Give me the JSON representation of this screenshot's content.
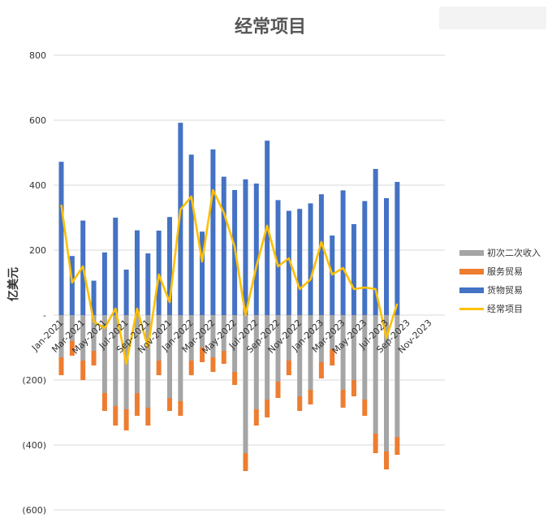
{
  "chart_data": {
    "type": "bar",
    "stacked": true,
    "title": "经常项目",
    "ylabel": "亿美元",
    "xlabel": "",
    "ylim": [
      -600,
      800
    ],
    "yticks": [
      {
        "value": 800,
        "label": "800"
      },
      {
        "value": 600,
        "label": "600"
      },
      {
        "value": 400,
        "label": "400"
      },
      {
        "value": 200,
        "label": "200"
      },
      {
        "value": 0,
        "label": "-"
      },
      {
        "value": -200,
        "label": "(200)"
      },
      {
        "value": -400,
        "label": "(400)"
      },
      {
        "value": -600,
        "label": "(600)"
      }
    ],
    "grid": true,
    "legend_position": "right",
    "categories": [
      "Jan-2021",
      "Feb-2021",
      "Mar-2021",
      "Apr-2021",
      "May-2021",
      "Jun-2021",
      "Jul-2021",
      "Aug-2021",
      "Sep-2021",
      "Oct-2021",
      "Nov-2021",
      "Dec-2021",
      "Jan-2022",
      "Feb-2022",
      "Mar-2022",
      "Apr-2022",
      "May-2022",
      "Jun-2022",
      "Jul-2022",
      "Aug-2022",
      "Sep-2022",
      "Oct-2022",
      "Nov-2022",
      "Dec-2022",
      "Jan-2023",
      "Feb-2023",
      "Mar-2023",
      "Apr-2023",
      "May-2023",
      "Jun-2023",
      "Jul-2023",
      "Aug-2023",
      "Sep-2023",
      "Oct-2023",
      "Nov-2023"
    ],
    "x_tick_labels": [
      "Jan-2021",
      "Mar-2021",
      "May-2021",
      "Jul-2021",
      "Sep-2021",
      "Nov-2021",
      "Jan-2022",
      "Mar-2022",
      "May-2022",
      "Jul-2022",
      "Sep-2022",
      "Nov-2022",
      "Jan-2023",
      "Mar-2023",
      "May-2023",
      "Jul-2023",
      "Sep-2023",
      "Nov-2023"
    ],
    "series": [
      {
        "name": "初次二次收入",
        "type": "bar",
        "color": "#a5a5a5",
        "values": [
          -130,
          -80,
          -140,
          -110,
          -240,
          -280,
          -290,
          -240,
          -285,
          -140,
          -255,
          -265,
          -140,
          -100,
          -130,
          -110,
          -175,
          -425,
          -290,
          -260,
          -205,
          -140,
          -250,
          -230,
          -145,
          -105,
          -230,
          -200,
          -260,
          -365,
          -420,
          -375,
          null,
          null,
          null
        ]
      },
      {
        "name": "服务贸易",
        "type": "bar",
        "color": "#ed7d31",
        "values": [
          -55,
          -45,
          -60,
          -45,
          -55,
          -60,
          -65,
          -70,
          -55,
          -45,
          -40,
          -45,
          -45,
          -45,
          -45,
          -40,
          -40,
          -55,
          -50,
          -55,
          -50,
          -45,
          -45,
          -45,
          -50,
          -50,
          -55,
          -50,
          -50,
          -60,
          -55,
          -55,
          null,
          null,
          null
        ]
      },
      {
        "name": "货物贸易",
        "type": "bar",
        "color": "#4472c4",
        "values": [
          472,
          182,
          291,
          106,
          193,
          300,
          140,
          261,
          190,
          260,
          302,
          592,
          494,
          257,
          510,
          426,
          385,
          418,
          405,
          537,
          354,
          321,
          327,
          344,
          372,
          245,
          384,
          280,
          351,
          450,
          360,
          410,
          null,
          null,
          null
        ]
      },
      {
        "name": "经常项目",
        "type": "line",
        "color": "#ffc000",
        "values": [
          340,
          100,
          150,
          -20,
          -40,
          20,
          -150,
          20,
          -100,
          125,
          40,
          325,
          365,
          165,
          385,
          315,
          210,
          0,
          150,
          275,
          150,
          175,
          80,
          110,
          225,
          125,
          145,
          80,
          85,
          80,
          -70,
          35,
          null,
          null,
          null
        ]
      }
    ]
  }
}
